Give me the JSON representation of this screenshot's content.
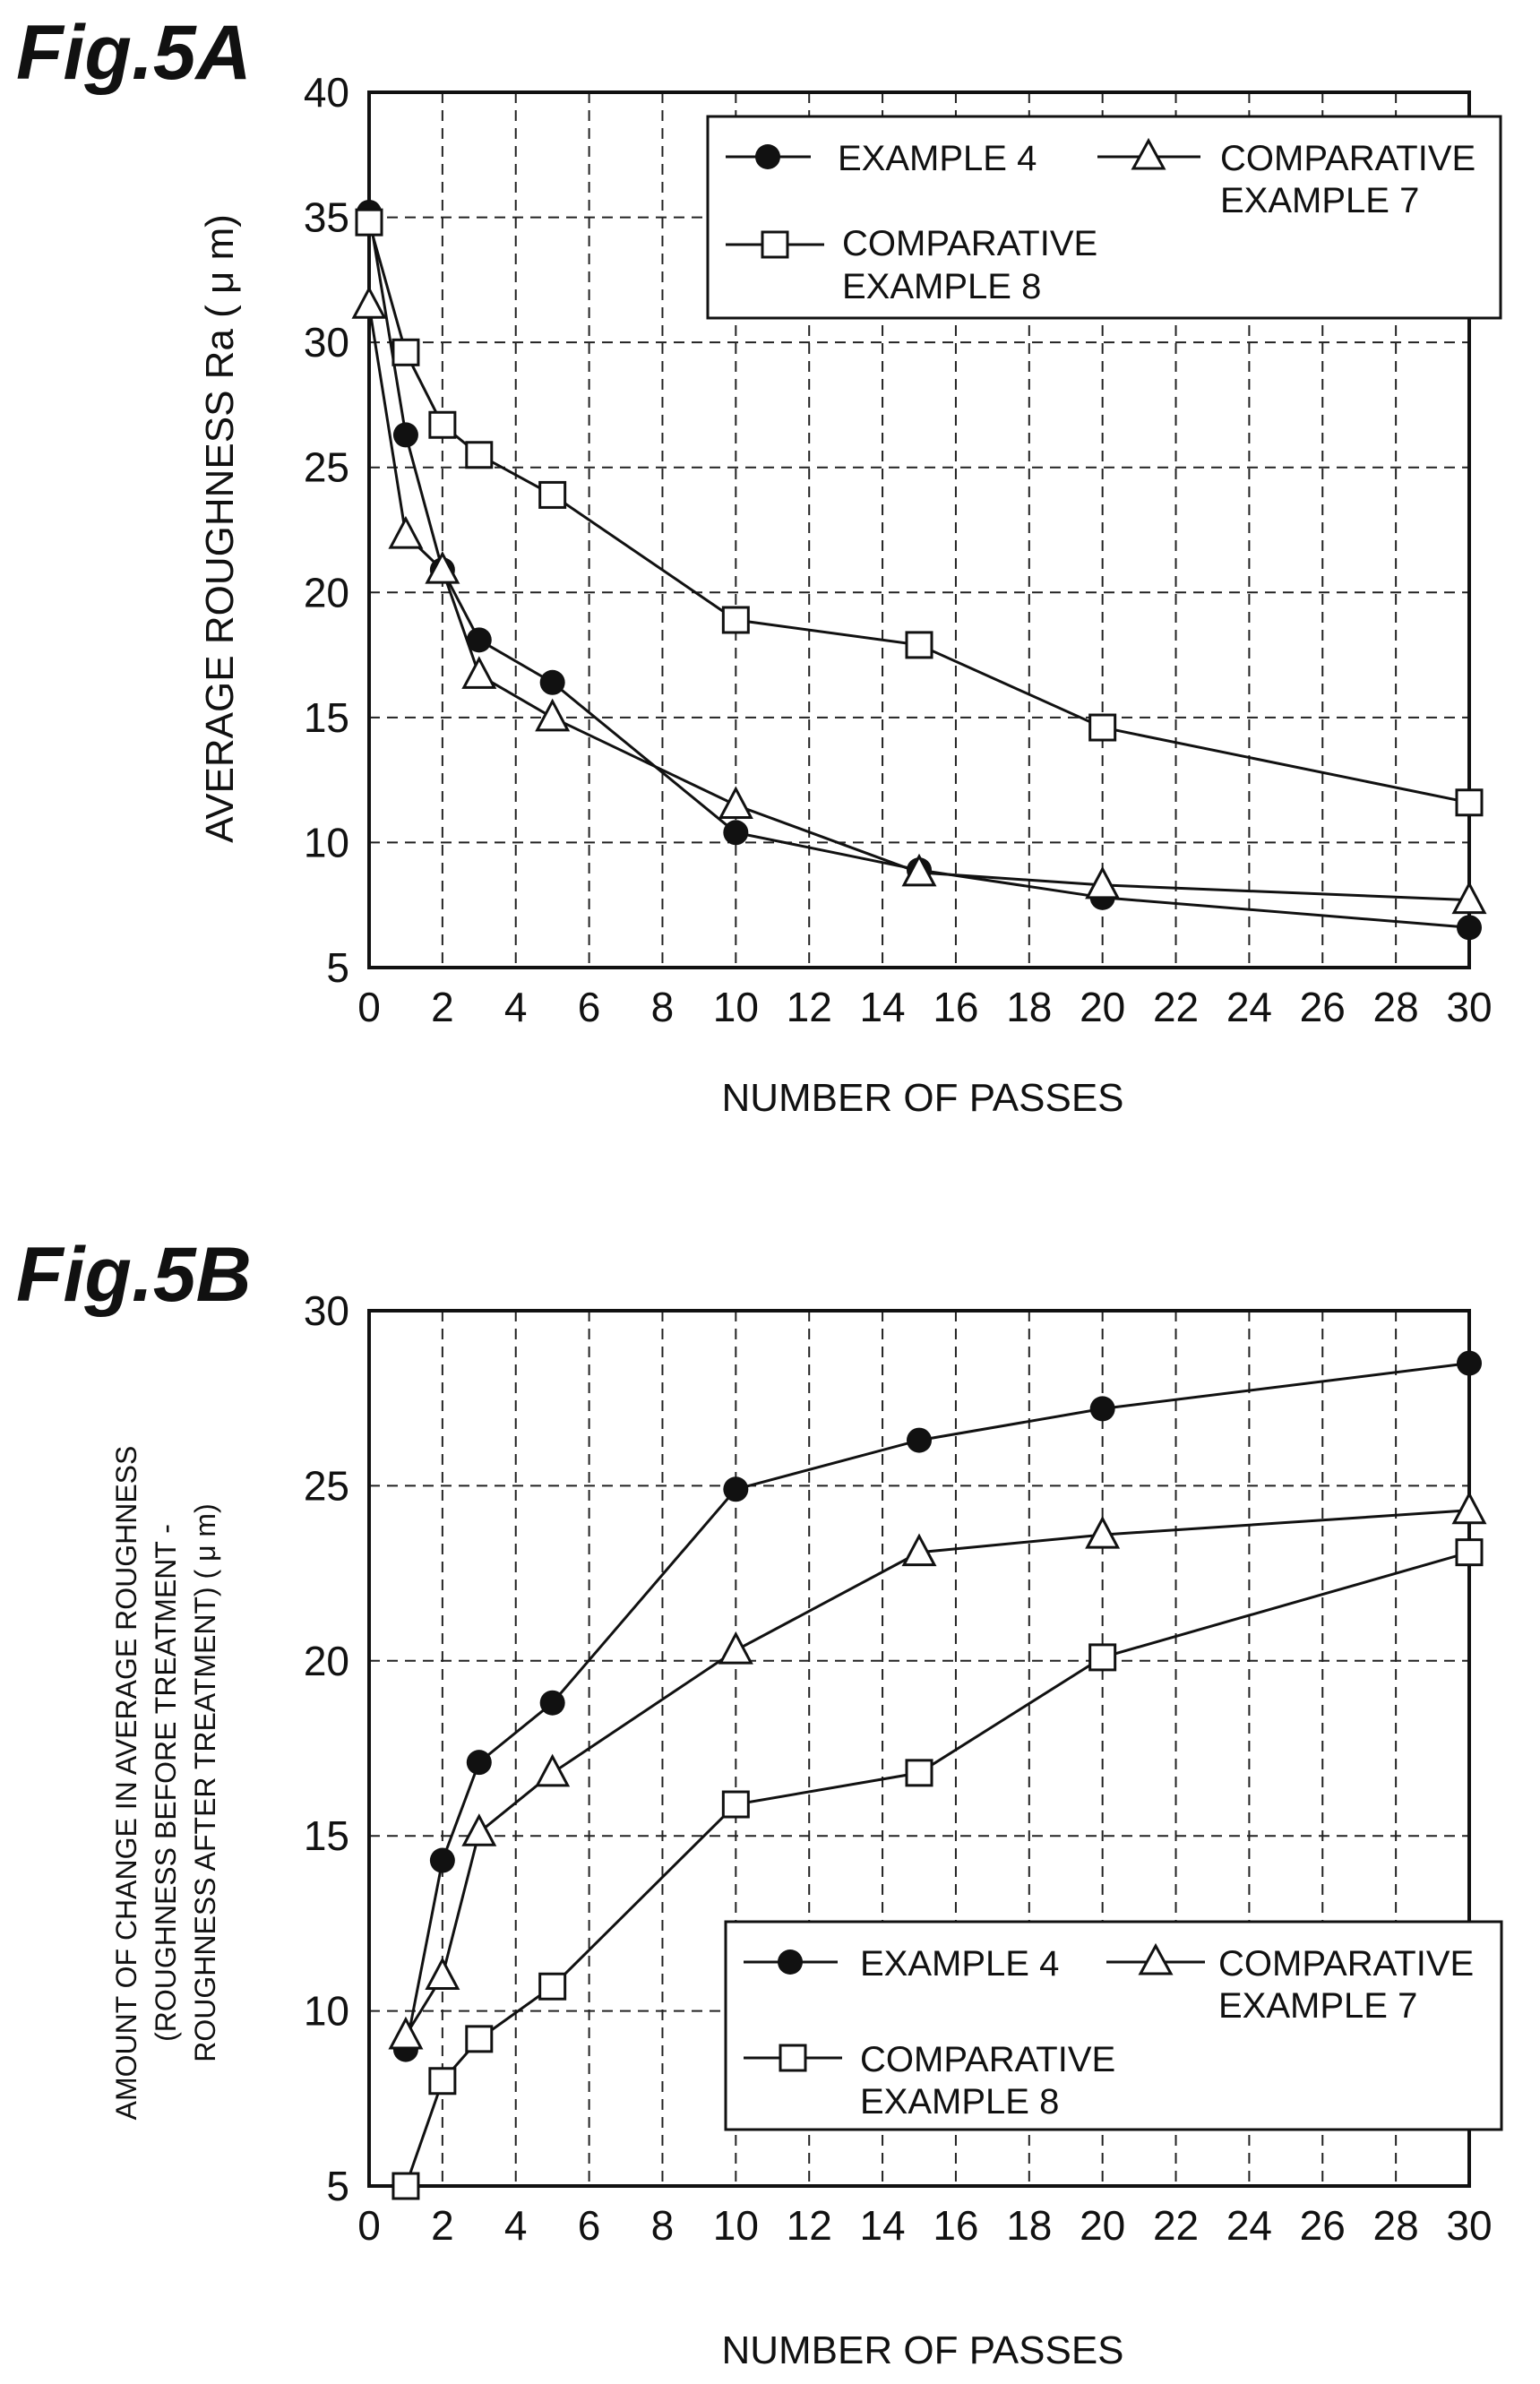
{
  "chart_data": [
    {
      "type": "line",
      "figure_label": "Fig.5A",
      "xlabel": "NUMBER OF PASSES",
      "ylabel": "AVERAGE ROUGHNESS Ra ( μ m)",
      "xlim": [
        0,
        30
      ],
      "ylim": [
        5,
        40
      ],
      "xticks": [
        "0",
        "2",
        "4",
        "6",
        "8",
        "10",
        "12",
        "14",
        "16",
        "18",
        "20",
        "22",
        "24",
        "26",
        "28",
        "30"
      ],
      "yticks": [
        "5",
        "10",
        "15",
        "20",
        "25",
        "30",
        "35",
        "40"
      ],
      "grid": true,
      "legend_position": "top-right",
      "series": [
        {
          "name": "EXAMPLE 4",
          "marker": "filled-circle",
          "x": [
            0,
            1,
            2,
            3,
            5,
            10,
            15,
            20,
            30
          ],
          "y": [
            35.2,
            26.3,
            20.9,
            18.1,
            16.4,
            10.4,
            8.9,
            7.8,
            6.6
          ]
        },
        {
          "name": "COMPARATIVE EXAMPLE 7",
          "marker": "open-triangle",
          "x": [
            0,
            1,
            2,
            3,
            5,
            10,
            15,
            20,
            30
          ],
          "y": [
            31.5,
            22.3,
            20.9,
            16.7,
            15.0,
            11.5,
            8.8,
            8.3,
            7.7
          ]
        },
        {
          "name": "COMPARATIVE EXAMPLE 8",
          "marker": "open-square",
          "x": [
            0,
            1,
            2,
            3,
            5,
            10,
            15,
            20,
            30
          ],
          "y": [
            34.8,
            29.6,
            26.7,
            25.5,
            23.9,
            18.9,
            17.9,
            14.6,
            11.6
          ]
        }
      ]
    },
    {
      "type": "line",
      "figure_label": "Fig.5B",
      "xlabel": "NUMBER OF PASSES",
      "ylabel": "AMOUNT OF CHANGE IN AVERAGE ROUGHNESS (ROUGHNESS BEFORE TREATMENT - ROUGHNESS AFTER TREATMENT) ( μ m)",
      "xlim": [
        0,
        30
      ],
      "ylim": [
        5,
        30
      ],
      "xticks": [
        "0",
        "2",
        "4",
        "6",
        "8",
        "10",
        "12",
        "14",
        "16",
        "18",
        "20",
        "22",
        "24",
        "26",
        "28",
        "30"
      ],
      "yticks": [
        "5",
        "10",
        "15",
        "20",
        "25",
        "30"
      ],
      "grid": true,
      "legend_position": "bottom-right",
      "series": [
        {
          "name": "EXAMPLE 4",
          "marker": "filled-circle",
          "x": [
            1,
            2,
            3,
            5,
            10,
            15,
            20,
            30
          ],
          "y": [
            8.9,
            14.3,
            17.1,
            18.8,
            24.9,
            26.3,
            27.2,
            28.5
          ]
        },
        {
          "name": "COMPARATIVE EXAMPLE 7",
          "marker": "open-triangle",
          "x": [
            1,
            2,
            3,
            5,
            10,
            15,
            20,
            30
          ],
          "y": [
            9.3,
            11.0,
            15.1,
            16.8,
            20.3,
            23.1,
            23.6,
            24.3
          ]
        },
        {
          "name": "COMPARATIVE EXAMPLE 8",
          "marker": "open-square",
          "x": [
            1,
            2,
            3,
            5,
            10,
            15,
            20,
            30
          ],
          "y": [
            5.0,
            8.0,
            9.2,
            10.7,
            15.9,
            16.8,
            20.1,
            23.1
          ]
        }
      ]
    }
  ],
  "charts_text": [
    {
      "figure_label": "Fig.5A",
      "xlabel": "NUMBER OF PASSES",
      "ylabel": "AVERAGE ROUGHNESS Ra ( μ m)",
      "legend": [
        {
          "line1": "EXAMPLE 4",
          "line2": ""
        },
        {
          "line1": "COMPARATIVE",
          "line2": "EXAMPLE 7"
        },
        {
          "line1": "COMPARATIVE",
          "line2": "EXAMPLE 8"
        }
      ]
    },
    {
      "figure_label": "Fig.5B",
      "xlabel": "NUMBER OF PASSES",
      "ylabel_lines": [
        "AMOUNT OF CHANGE IN AVERAGE ROUGHNESS",
        "(ROUGHNESS BEFORE TREATMENT -",
        "ROUGHNESS AFTER TREATMENT) ( μ m)"
      ],
      "legend": [
        {
          "line1": "EXAMPLE 4",
          "line2": ""
        },
        {
          "line1": "COMPARATIVE",
          "line2": "EXAMPLE 7"
        },
        {
          "line1": "COMPARATIVE",
          "line2": "EXAMPLE 8"
        }
      ]
    }
  ]
}
